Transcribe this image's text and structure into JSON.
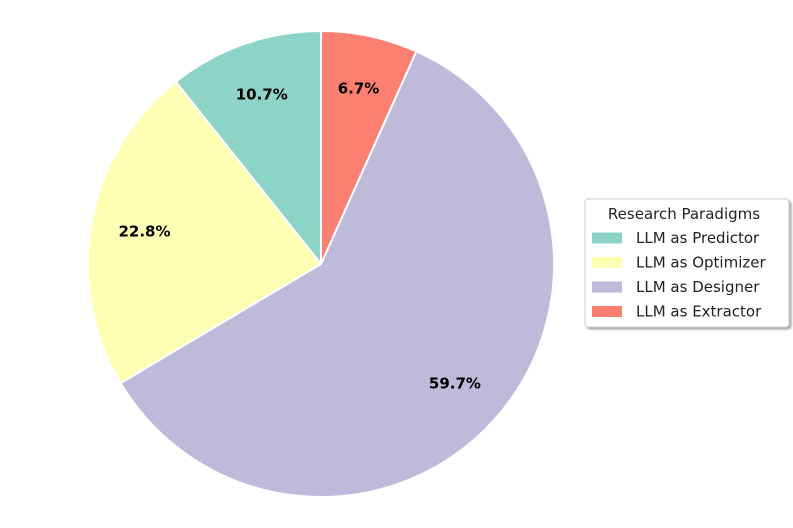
{
  "chart_data": {
    "type": "pie",
    "title": "",
    "categories": [
      "LLM as Predictor",
      "LLM as Optimizer",
      "LLM as Designer",
      "LLM as Extractor"
    ],
    "values": [
      10.7,
      22.8,
      59.7,
      6.7
    ],
    "labels": [
      "10.7%",
      "22.8%",
      "59.7%",
      "6.7%"
    ],
    "colors": [
      "#8dd3c7",
      "#ffffb3",
      "#bebada",
      "#fb8072"
    ],
    "start_angle_deg": 90,
    "direction": "counterclockwise",
    "legend": {
      "title": "Research Paradigms",
      "placement": "right"
    }
  }
}
